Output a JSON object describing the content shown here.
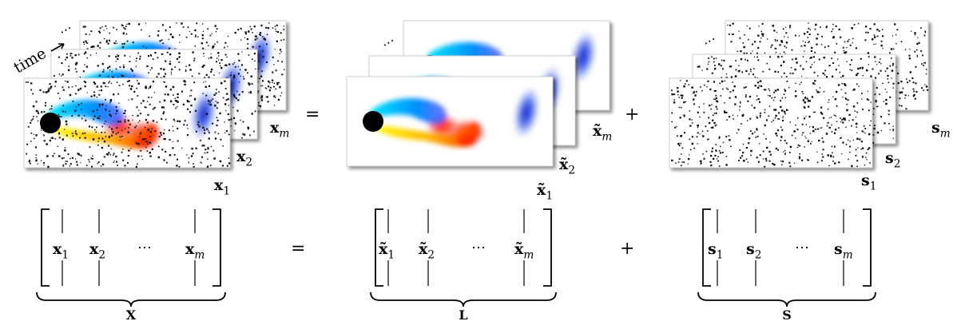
{
  "top": {
    "noisy": {
      "time_label": "time",
      "dots": "⋯",
      "frame_labels": [
        {
          "base": "x",
          "sub": "1"
        },
        {
          "base": "x",
          "sub": "2"
        },
        {
          "base": "x",
          "sub": "m"
        }
      ]
    },
    "equals": "=",
    "lowrank": {
      "dots": "⋯",
      "frame_labels": [
        {
          "base": "x̃",
          "sub": "1"
        },
        {
          "base": "x̃",
          "sub": "2"
        },
        {
          "base": "x̃",
          "sub": "m"
        }
      ]
    },
    "plus": "+",
    "sparse": {
      "dots": "⋯",
      "frame_labels": [
        {
          "base": "s",
          "sub": "1"
        },
        {
          "base": "s",
          "sub": "2"
        },
        {
          "base": "s",
          "sub": "m"
        }
      ]
    }
  },
  "bottom": {
    "equals": "=",
    "plus": "+",
    "matrices": [
      {
        "columns": [
          {
            "base": "x",
            "sub": "1"
          },
          {
            "base": "x",
            "sub": "2"
          },
          {
            "base": "x",
            "sub": "m"
          }
        ],
        "dots": "⋯",
        "brace_label": "X"
      },
      {
        "columns": [
          {
            "base": "x̃",
            "sub": "1"
          },
          {
            "base": "x̃",
            "sub": "2"
          },
          {
            "base": "x̃",
            "sub": "m"
          }
        ],
        "dots": "⋯",
        "brace_label": "L"
      },
      {
        "columns": [
          {
            "base": "s",
            "sub": "1"
          },
          {
            "base": "s",
            "sub": "2"
          },
          {
            "base": "s",
            "sub": "m"
          }
        ],
        "dots": "⋯",
        "brace_label": "S"
      }
    ]
  },
  "colors": {
    "positive_vorticity": "#e00000",
    "negative_vorticity": "#1030d0",
    "cylinder": "#000000"
  }
}
